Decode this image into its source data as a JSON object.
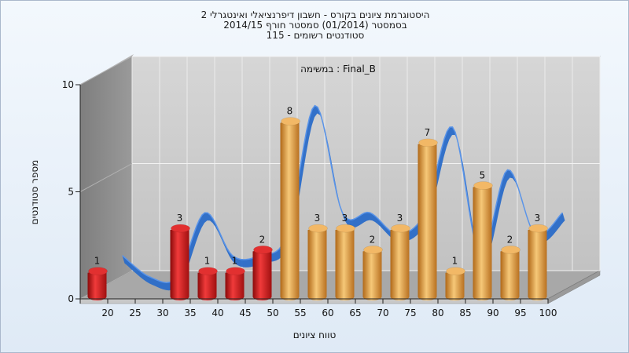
{
  "chart_data": {
    "type": "bar",
    "title_lines": [
      "היסטוגרמת ציונים בקורס - חשבון דיפרנציאלי ואינטגרלי 2",
      "בסמסטר  (01/2014)  סמסטר חורף 2014/15",
      "סטודנטים רשומים - 115"
    ],
    "annotation": "במשימה : Final_B",
    "xlabel": "טווח ציונים",
    "ylabel": "מספר סטודנטים",
    "x_ticks": [
      "20",
      "25",
      "30",
      "35",
      "40",
      "45",
      "50",
      "55",
      "60",
      "65",
      "70",
      "75",
      "80",
      "85",
      "90",
      "95",
      "100"
    ],
    "y_ticks": [
      "0",
      "5",
      "10"
    ],
    "ylim": [
      0,
      10
    ],
    "categories": [
      "20",
      "25",
      "30",
      "35",
      "40",
      "45",
      "50",
      "55",
      "60",
      "65",
      "70",
      "75",
      "80",
      "85",
      "90",
      "95",
      "100"
    ],
    "values": [
      1,
      0,
      0,
      3,
      1,
      1,
      2,
      8,
      3,
      3,
      2,
      3,
      7,
      1,
      5,
      2,
      3
    ],
    "bar_labels": [
      "1",
      "",
      "",
      "3",
      "1",
      "1",
      "2",
      "8",
      "3",
      "3",
      "2",
      "3",
      "7",
      "1",
      "5",
      "2",
      "3"
    ],
    "failing_color": "#d42020",
    "passing_color": "#e0a048",
    "curve_color": "#2a6cc8",
    "wall_color": "#8a8a8a",
    "grid": true
  }
}
